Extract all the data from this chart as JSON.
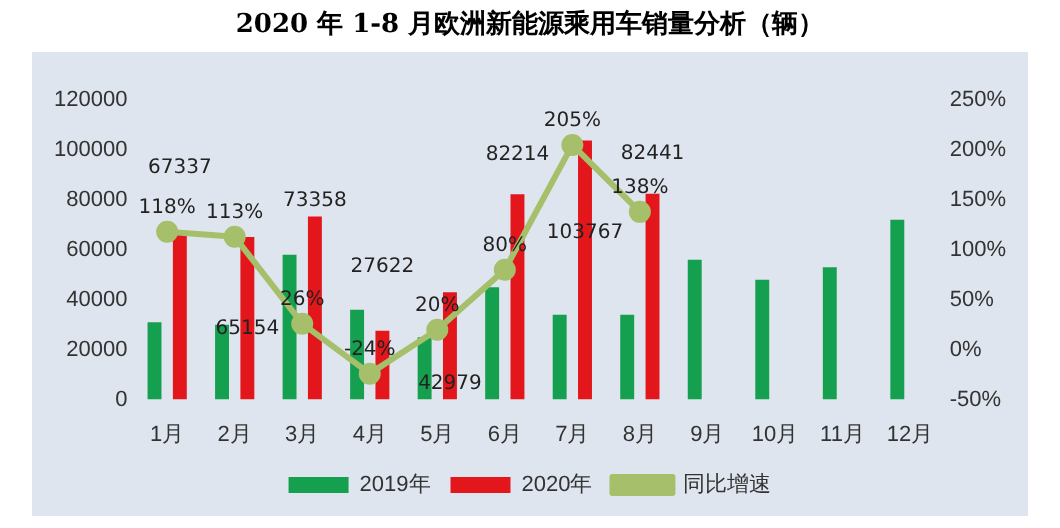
{
  "chart_data": {
    "type": "bar",
    "title": "2020 年 1-8 月欧洲新能源乘用车销量分析（辆）",
    "categories": [
      "1月",
      "2月",
      "3月",
      "4月",
      "5月",
      "6月",
      "7月",
      "8月",
      "9月",
      "10月",
      "11月",
      "12月"
    ],
    "series": [
      {
        "name": "2019年",
        "color": "#14a04e",
        "values": [
          31000,
          30000,
          58000,
          36000,
          25000,
          45000,
          34000,
          34000,
          56000,
          48000,
          53000,
          72000
        ]
      },
      {
        "name": "2020年",
        "color": "#e3161b",
        "values": [
          67337,
          65154,
          73358,
          27622,
          42979,
          82214,
          103767,
          82441,
          null,
          null,
          null,
          null
        ],
        "value_labels": [
          "67337",
          "65154",
          "73358",
          "27622",
          "42979",
          "82214",
          "103767",
          "82441",
          null,
          null,
          null,
          null
        ]
      },
      {
        "name": "同比增速",
        "type": "line",
        "axis": "y2",
        "color": "#a5bf6a",
        "values": [
          118,
          113,
          26,
          -24,
          20,
          80,
          205,
          138,
          null,
          null,
          null,
          null
        ],
        "value_labels": [
          "118%",
          "113%",
          "26%",
          "-24%",
          "20%",
          "80%",
          "205%",
          "138%",
          null,
          null,
          null,
          null
        ]
      }
    ],
    "ylim": [
      0,
      120000
    ],
    "yticks": [
      0,
      20000,
      40000,
      60000,
      80000,
      100000,
      120000
    ],
    "y2lim": [
      -50,
      250
    ],
    "y2ticks": [
      {
        "value": -50,
        "label": "-50%"
      },
      {
        "value": 0,
        "label": "0%"
      },
      {
        "value": 50,
        "label": "50%"
      },
      {
        "value": 100,
        "label": "100%"
      },
      {
        "value": 150,
        "label": "150%"
      },
      {
        "value": 200,
        "label": "200%"
      },
      {
        "value": 250,
        "label": "250%"
      }
    ],
    "legend": "bottom",
    "marker": "circle",
    "grid": false
  }
}
